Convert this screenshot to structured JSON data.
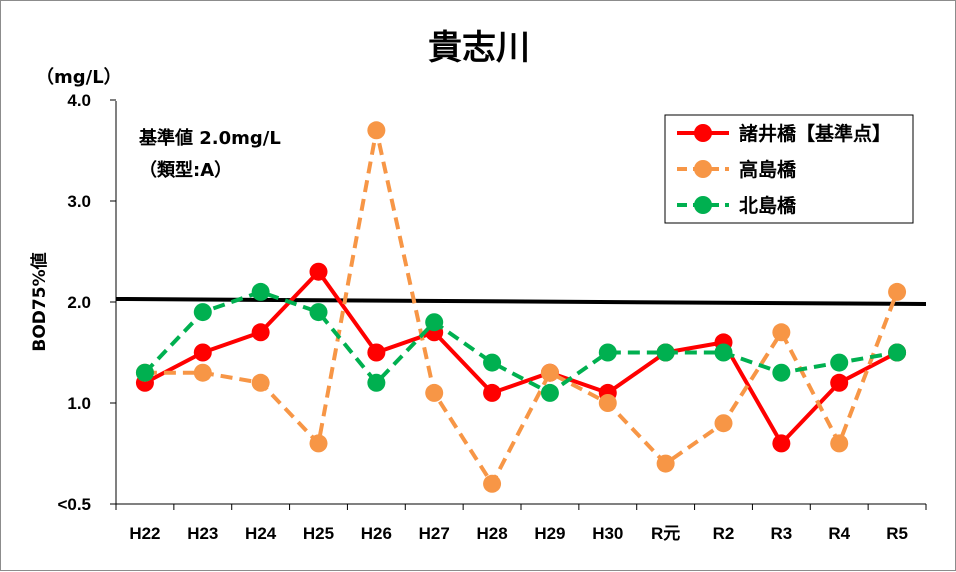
{
  "chart_data": {
    "type": "line",
    "title": "貴志川",
    "unit_label": "（mg/L）",
    "ylabel": "BOD75%値",
    "ytick_labels": [
      "<0.5",
      "1.0",
      "2.0",
      "3.0",
      "4.0"
    ],
    "ylim": [
      0.5,
      4.0
    ],
    "categories": [
      "H22",
      "H23",
      "H24",
      "H25",
      "H26",
      "H27",
      "H28",
      "H29",
      "H30",
      "R元",
      "R2",
      "R3",
      "R4",
      "R5"
    ],
    "reference": {
      "label_line1": "基準値 2.0mg/L",
      "label_line2": "（類型:A）",
      "start": 2.03,
      "end": 1.98,
      "color": "#000000"
    },
    "legend_position": "top-right",
    "series": [
      {
        "name": "諸井橋【基準点】",
        "style": "solid",
        "color": "#ff0000",
        "values": [
          1.2,
          1.5,
          1.7,
          2.3,
          1.5,
          1.7,
          1.1,
          1.3,
          1.1,
          1.5,
          1.6,
          0.8,
          1.2,
          1.5
        ]
      },
      {
        "name": "高島橋",
        "style": "dashed",
        "color": "#f79646",
        "values": [
          1.3,
          1.3,
          1.2,
          0.8,
          3.7,
          1.1,
          0.6,
          1.3,
          1.0,
          0.7,
          0.9,
          1.7,
          0.8,
          2.1
        ]
      },
      {
        "name": "北島橋",
        "style": "dashed",
        "color": "#00b050",
        "values": [
          1.3,
          1.9,
          2.1,
          1.9,
          1.2,
          1.8,
          1.4,
          1.1,
          1.5,
          1.5,
          1.5,
          1.3,
          1.4,
          1.5
        ]
      }
    ]
  }
}
